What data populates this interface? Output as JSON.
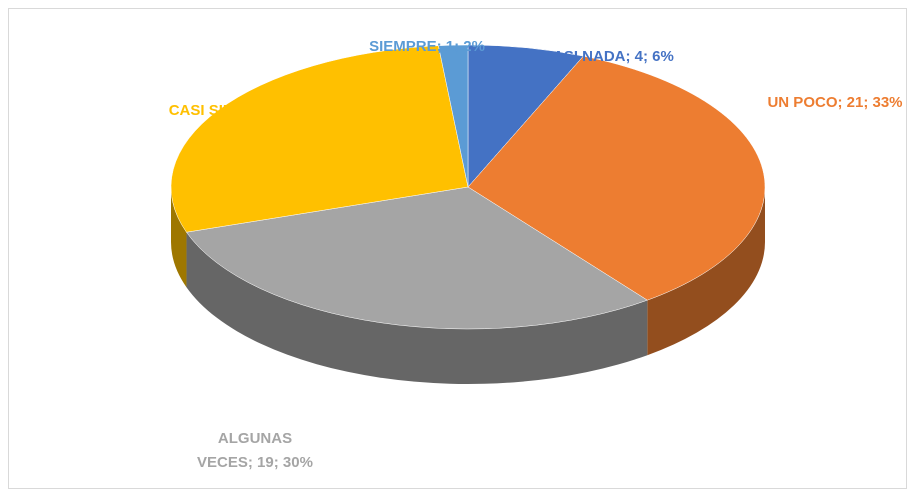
{
  "chart_data": {
    "type": "pie",
    "categories": [
      "CASI NADA",
      "UN POCO",
      "ALGUNAS VECES",
      "CASI SIEMPRE",
      "SIEMPRE"
    ],
    "values": [
      4,
      21,
      19,
      18,
      1
    ],
    "value_labels": [
      "CASI NADA; 4; 6%",
      "UN POCO; 21; 33%",
      "ALGUNAS VECES; 19; 30%",
      "CASI SIEMPRE; 18; 29%",
      "SIEMPRE; 1; 2%"
    ],
    "colors": [
      "#4472c4",
      "#ed7d31",
      "#a5a5a5",
      "#ffc000",
      "#5b9bd5"
    ]
  }
}
